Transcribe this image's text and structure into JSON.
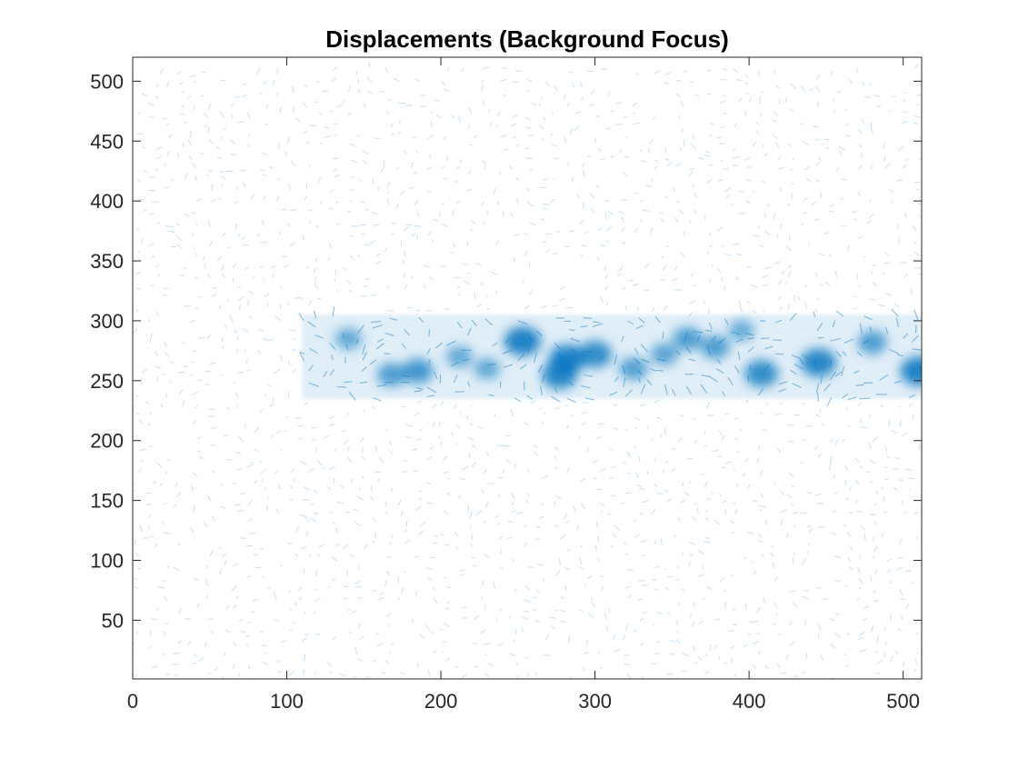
{
  "chart_data": {
    "type": "heatmap",
    "title": "Displacements (Background Focus)",
    "xlabel": "",
    "ylabel": "",
    "xlim": [
      0,
      512
    ],
    "ylim": [
      1,
      520
    ],
    "data_extent": {
      "x": [
        0,
        512
      ],
      "y": [
        0,
        512
      ]
    },
    "xticks": [
      0,
      100,
      200,
      300,
      400,
      500
    ],
    "yticks": [
      50,
      100,
      150,
      200,
      250,
      300,
      350,
      400,
      450,
      500
    ],
    "grid": false,
    "legend": "none",
    "box": true,
    "plot_style": "quiver field of displacement vectors",
    "colors": {
      "vector_color": "#0072bd",
      "axes_color": "#262626",
      "background": "#ffffff"
    },
    "high_displacement_band": {
      "y_range": [
        235,
        305
      ],
      "x_range": [
        110,
        512
      ]
    },
    "displacement_hotspots": [
      {
        "x": 253,
        "y": 283,
        "intensity": 1.0
      },
      {
        "x": 282,
        "y": 268,
        "intensity": 1.0
      },
      {
        "x": 277,
        "y": 255,
        "intensity": 0.95
      },
      {
        "x": 300,
        "y": 272,
        "intensity": 0.85
      },
      {
        "x": 445,
        "y": 265,
        "intensity": 0.95
      },
      {
        "x": 510,
        "y": 258,
        "intensity": 1.0
      },
      {
        "x": 408,
        "y": 256,
        "intensity": 0.85
      },
      {
        "x": 185,
        "y": 258,
        "intensity": 0.7
      },
      {
        "x": 168,
        "y": 255,
        "intensity": 0.6
      },
      {
        "x": 140,
        "y": 285,
        "intensity": 0.45
      },
      {
        "x": 360,
        "y": 285,
        "intensity": 0.6
      },
      {
        "x": 378,
        "y": 278,
        "intensity": 0.6
      },
      {
        "x": 325,
        "y": 260,
        "intensity": 0.55
      },
      {
        "x": 345,
        "y": 272,
        "intensity": 0.5
      },
      {
        "x": 480,
        "y": 282,
        "intensity": 0.6
      },
      {
        "x": 212,
        "y": 270,
        "intensity": 0.45
      },
      {
        "x": 230,
        "y": 260,
        "intensity": 0.45
      },
      {
        "x": 395,
        "y": 292,
        "intensity": 0.4
      }
    ]
  }
}
